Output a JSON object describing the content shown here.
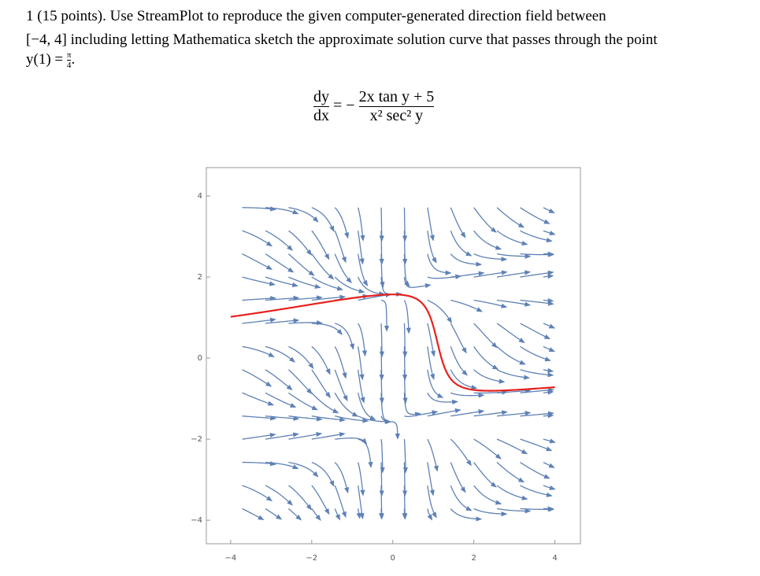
{
  "problem": {
    "lines": [
      "1 (15 points). Use StreamPlot to reproduce the given computer-generated direction field between",
      "[−4, 4] including letting Mathematica sketch the approximate solution curve that passes through the point"
    ],
    "initial_condition": {
      "lhs": "y(1) =",
      "numerator": "π",
      "denominator": "4",
      "end": "."
    }
  },
  "equation": {
    "lhs_num": "dy",
    "lhs_den": "dx",
    "sign": "= −",
    "rhs_num": "2x tan y + 5",
    "rhs_den": "x² sec² y"
  },
  "chart_data": {
    "type": "streamplot",
    "stream_color": "#5e81b5",
    "solution_color": "#e8211d",
    "xlim": [
      -4.6,
      4.63
    ],
    "ylim": [
      -4.58,
      4.7
    ],
    "xticks": [
      {
        "value": -4,
        "label": "−4"
      },
      {
        "value": -2,
        "label": "−2"
      },
      0,
      2,
      4
    ],
    "yticks": [
      {
        "value": -4,
        "label": "−4"
      },
      {
        "value": -2,
        "label": "−2"
      },
      0,
      2,
      4
    ]
  }
}
